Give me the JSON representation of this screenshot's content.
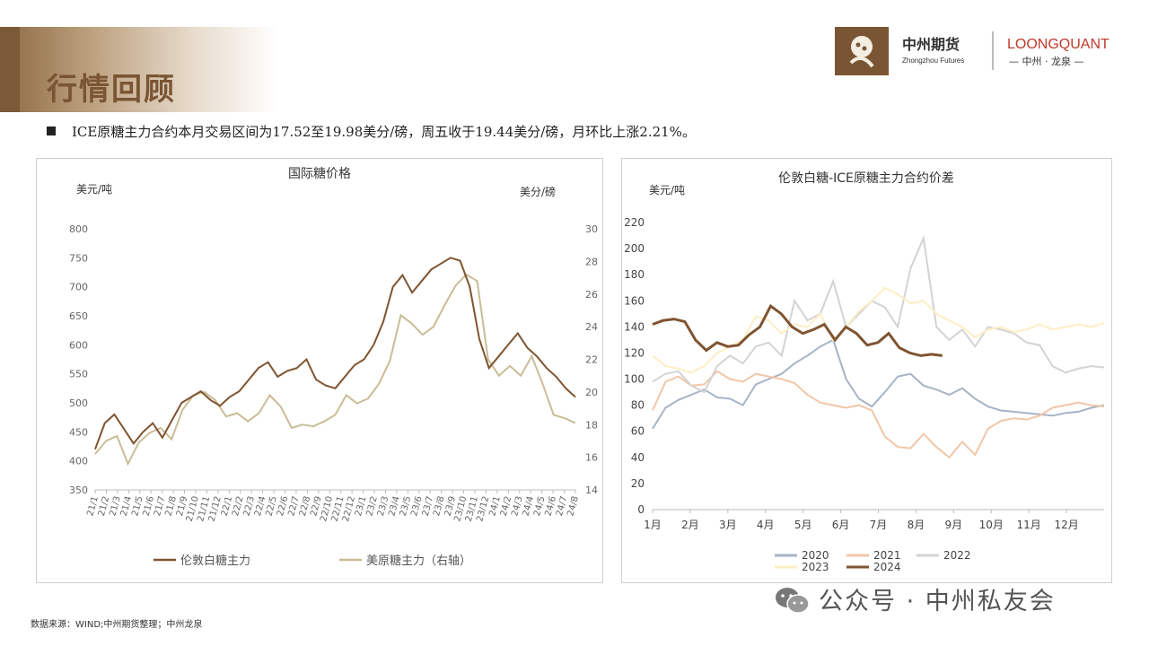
{
  "page": {
    "title": "行情回顾",
    "bullet": "ICE原糖主力合约本月交易区间为17.52至19.98美分/磅，周五收于19.44美分/磅，月环比上涨2.21%。",
    "source": "数据来源：WIND;中州期货整理；中州龙泉",
    "wechat": "公众号 · 中州私友会",
    "logo": {
      "cn": "中州期货",
      "en": "Zhongzhou Futures",
      "quant": "LOONGQUANT",
      "quant_cn": "— 中州 · 龙泉 —"
    }
  },
  "colors": {
    "brown": "#7f5431",
    "khaki": "#c9bd96",
    "s2020": "#a7b4c6",
    "s2021": "#f2c6a8",
    "s2022": "#d3d3d3",
    "s2023": "#fdeec4",
    "s2024": "#7f5431"
  },
  "chart_data": [
    {
      "type": "line",
      "title": "国际糖价格",
      "ylabel_left": "美元/吨",
      "ylabel_right": "美分/磅",
      "ylim_left": [
        350,
        800
      ],
      "yticks_left": [
        350,
        400,
        450,
        500,
        550,
        600,
        650,
        700,
        750,
        800
      ],
      "ylim_right": [
        14,
        30
      ],
      "yticks_right": [
        14,
        16,
        18,
        20,
        22,
        24,
        26,
        28,
        30
      ],
      "x_ticks": [
        "21/1",
        "21/2",
        "21/3",
        "21/4",
        "21/5",
        "21/6",
        "21/7",
        "21/8",
        "21/9",
        "21/10",
        "21/11",
        "21/12",
        "22/1",
        "22/2",
        "22/3",
        "22/4",
        "22/5",
        "22/6",
        "22/7",
        "22/8",
        "22/9",
        "22/10",
        "22/11",
        "22/12",
        "23/1",
        "23/2",
        "23/3",
        "23/4",
        "23/5",
        "23/6",
        "23/7",
        "23/8",
        "23/9",
        "23/10",
        "23/11",
        "23/12",
        "24/1",
        "24/2",
        "24/3",
        "24/4",
        "24/5",
        "24/6",
        "24/7",
        "24/8"
      ],
      "legend_position": "bottom",
      "grid": false,
      "series": [
        {
          "name": "伦敦白糖主力",
          "axis": "left",
          "values": [
            420,
            465,
            480,
            455,
            430,
            450,
            465,
            440,
            470,
            500,
            510,
            520,
            505,
            495,
            510,
            520,
            540,
            560,
            570,
            545,
            555,
            560,
            575,
            540,
            530,
            525,
            545,
            565,
            575,
            600,
            640,
            700,
            720,
            690,
            710,
            730,
            740,
            750,
            745,
            700,
            610,
            560,
            580,
            600,
            620,
            595,
            580,
            560,
            545,
            525,
            510
          ]
        },
        {
          "name": "美原糖主力（右轴）",
          "axis": "right",
          "values": [
            16.2,
            17.0,
            17.3,
            15.6,
            16.9,
            17.5,
            17.8,
            17.1,
            18.9,
            19.8,
            20.0,
            19.5,
            18.5,
            18.7,
            18.2,
            18.7,
            19.8,
            19.1,
            17.8,
            18.0,
            17.9,
            18.2,
            18.6,
            19.8,
            19.3,
            19.6,
            20.5,
            21.9,
            24.7,
            24.2,
            23.5,
            24.0,
            25.3,
            26.5,
            27.2,
            26.8,
            22.0,
            21.0,
            21.6,
            21.0,
            22.2,
            20.5,
            18.6,
            18.4,
            18.1
          ]
        }
      ]
    },
    {
      "type": "line",
      "title": "伦敦白糖-ICE原糖主力合约价差",
      "ylabel": "美元/吨",
      "ylim": [
        0,
        220
      ],
      "yticks": [
        0,
        20,
        40,
        60,
        80,
        100,
        120,
        140,
        160,
        180,
        200,
        220
      ],
      "x_ticks": [
        "1月",
        "2月",
        "3月",
        "4月",
        "5月",
        "6月",
        "7月",
        "8月",
        "9月",
        "10月",
        "11月",
        "12月"
      ],
      "legend_position": "bottom",
      "grid": false,
      "series": [
        {
          "name": "2020",
          "values": [
            62,
            78,
            84,
            88,
            92,
            86,
            85,
            80,
            96,
            100,
            104,
            112,
            118,
            125,
            130,
            100,
            85,
            79,
            90,
            102,
            104,
            95,
            92,
            88,
            93,
            85,
            79,
            76,
            75,
            74,
            73,
            72,
            74,
            75,
            78,
            80
          ]
        },
        {
          "name": "2021",
          "values": [
            76,
            98,
            102,
            95,
            96,
            106,
            100,
            98,
            104,
            102,
            100,
            97,
            88,
            82,
            80,
            78,
            80,
            76,
            56,
            48,
            47,
            58,
            48,
            40,
            52,
            42,
            62,
            68,
            70,
            69,
            72,
            78,
            80,
            82,
            80,
            79
          ]
        },
        {
          "name": "2022",
          "values": [
            98,
            104,
            106,
            95,
            90,
            110,
            118,
            112,
            125,
            128,
            118,
            160,
            145,
            150,
            175,
            140,
            150,
            160,
            155,
            140,
            185,
            208,
            140,
            130,
            138,
            125,
            140,
            138,
            135,
            128,
            126,
            110,
            105,
            108,
            110,
            109
          ]
        },
        {
          "name": "2023",
          "values": [
            118,
            110,
            108,
            105,
            110,
            120,
            125,
            130,
            148,
            145,
            135,
            142,
            140,
            150,
            130,
            140,
            152,
            160,
            170,
            165,
            158,
            160,
            150,
            145,
            140,
            132,
            138,
            140,
            136,
            138,
            142,
            138,
            140,
            142,
            140,
            143
          ]
        },
        {
          "name": "2024",
          "values": [
            142,
            145,
            146,
            144,
            130,
            122,
            128,
            125,
            126,
            134,
            140,
            156,
            150,
            140,
            135,
            138,
            142,
            130,
            140,
            135,
            126,
            128,
            135,
            124,
            120,
            118,
            119,
            118
          ]
        }
      ]
    }
  ]
}
